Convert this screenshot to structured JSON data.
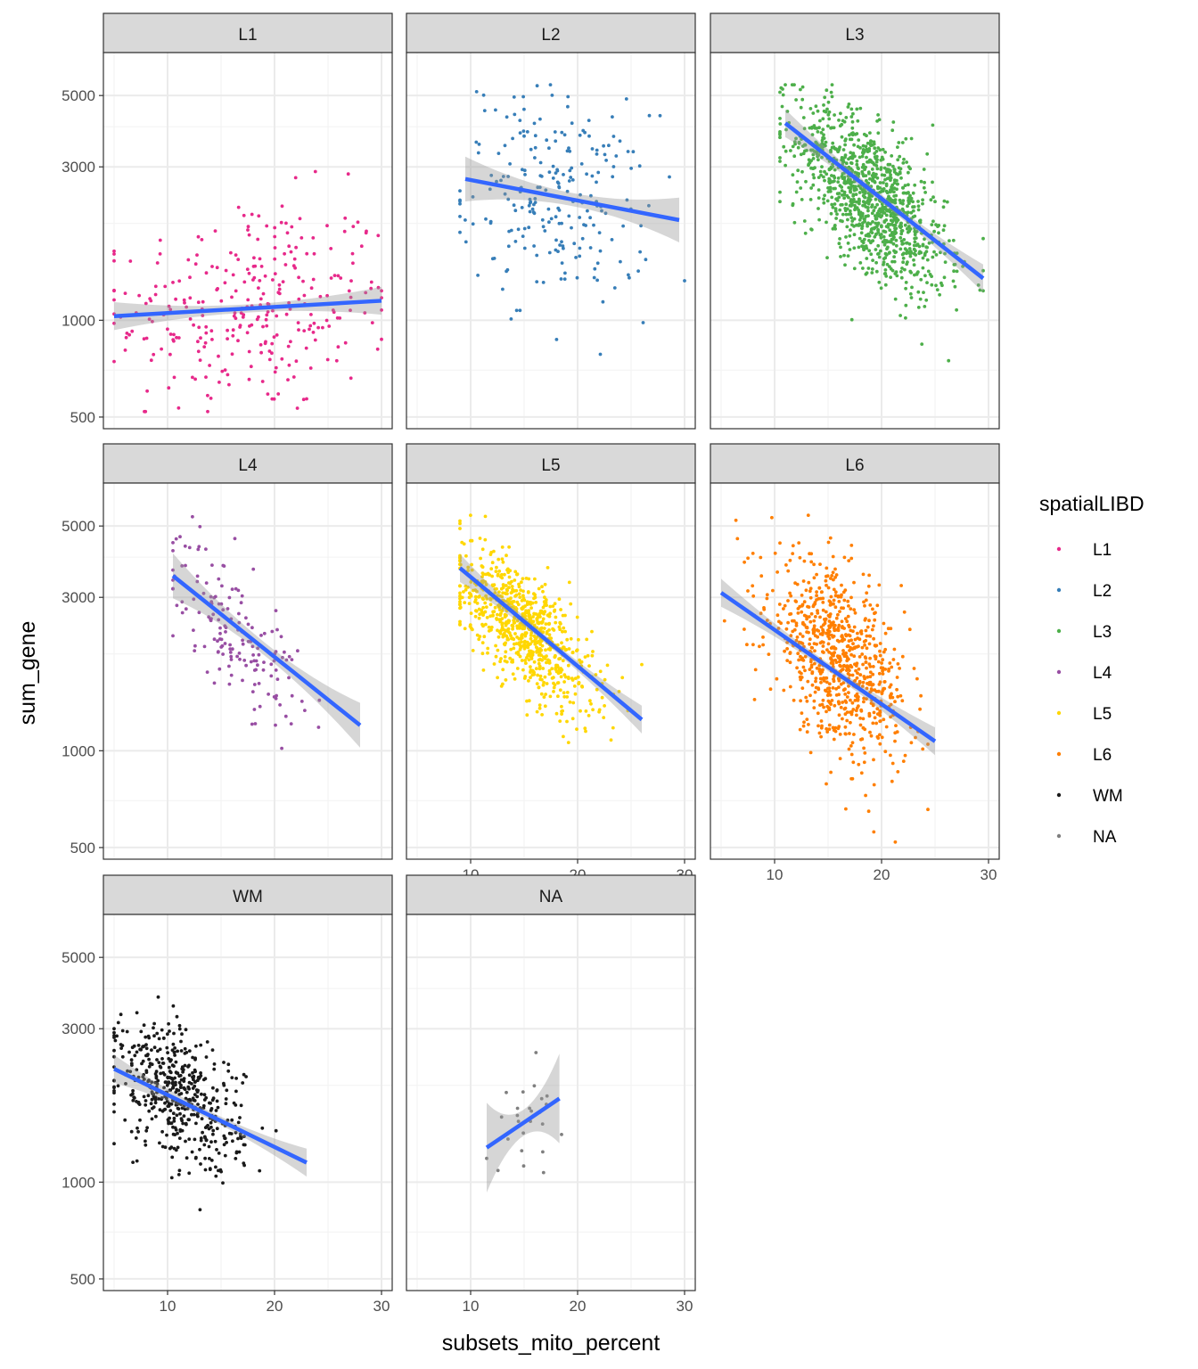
{
  "chart_data": {
    "type": "scatter",
    "facet_by": "spatialLIBD",
    "xlabel": "subsets_mito_percent",
    "ylabel": "sum_gene",
    "xlim": [
      4,
      31
    ],
    "ylim": [
      460,
      6800
    ],
    "y_scale": "log10",
    "x_ticks": [
      10,
      20,
      30
    ],
    "y_ticks": [
      500,
      1000,
      3000,
      5000
    ],
    "grid": true,
    "smooth_line_color": "#3366FF",
    "legend": {
      "title": "spatialLIBD",
      "position": "right",
      "entries": [
        {
          "label": "L1",
          "color": "#E7298A"
        },
        {
          "label": "L2",
          "color": "#377EB8"
        },
        {
          "label": "L3",
          "color": "#4DAF4A"
        },
        {
          "label": "L4",
          "color": "#984EA3"
        },
        {
          "label": "L5",
          "color": "#FFD700"
        },
        {
          "label": "L6",
          "color": "#FF7F00"
        },
        {
          "label": "WM",
          "color": "#1A1A1A"
        },
        {
          "label": "NA",
          "color": "#7F7F7F"
        }
      ]
    },
    "panels": [
      {
        "label": "L1",
        "color": "#E7298A",
        "n": 300,
        "x_range": [
          5,
          30
        ],
        "x_mean": 18,
        "x_sd": 6.5,
        "fit": {
          "x": [
            5,
            30
          ],
          "y": [
            1030,
            1150
          ]
        },
        "y_center_log": 3.04,
        "y_sd_log": 0.17,
        "slope": 0.0021
      },
      {
        "label": "L2",
        "color": "#377EB8",
        "n": 230,
        "x_range": [
          9,
          30
        ],
        "x_mean": 18,
        "x_sd": 4.5,
        "fit": {
          "x": [
            9.5,
            29.5
          ],
          "y": [
            2750,
            2050
          ]
        },
        "y_center_log": 3.38,
        "y_sd_log": 0.16,
        "slope": -0.0063
      },
      {
        "label": "L3",
        "color": "#4DAF4A",
        "n": 1100,
        "x_range": [
          10.5,
          29.5
        ],
        "x_mean": 19,
        "x_sd": 3.5,
        "fit": {
          "x": [
            11,
            29.5
          ],
          "y": [
            4100,
            1350
          ]
        },
        "y_center_log": 3.38,
        "y_sd_log": 0.11,
        "slope": -0.026
      },
      {
        "label": "L4",
        "color": "#984EA3",
        "n": 160,
        "x_range": [
          10.5,
          28.5
        ],
        "x_mean": 16,
        "x_sd": 3.2,
        "fit": {
          "x": [
            10.5,
            28
          ],
          "y": [
            3500,
            1200
          ]
        },
        "y_center_log": 3.38,
        "y_sd_log": 0.1,
        "slope": -0.027
      },
      {
        "label": "L5",
        "color": "#FFD700",
        "n": 800,
        "x_range": [
          9,
          26
        ],
        "x_mean": 15,
        "x_sd": 3.2,
        "fit": {
          "x": [
            9,
            26
          ],
          "y": [
            3700,
            1250
          ]
        },
        "y_center_log": 3.38,
        "y_sd_log": 0.09,
        "slope": -0.028
      },
      {
        "label": "L6",
        "color": "#FF7F00",
        "n": 800,
        "x_range": [
          5,
          26
        ],
        "x_mean": 16,
        "x_sd": 3.2,
        "fit": {
          "x": [
            5,
            25
          ],
          "y": [
            3100,
            1070
          ]
        },
        "y_center_log": 3.28,
        "y_sd_log": 0.13,
        "slope": -0.023
      },
      {
        "label": "WM",
        "color": "#1A1A1A",
        "n": 500,
        "x_range": [
          5,
          23
        ],
        "x_mean": 11,
        "x_sd": 3,
        "fit": {
          "x": [
            5,
            23
          ],
          "y": [
            2250,
            1150
          ]
        },
        "y_center_log": 3.27,
        "y_sd_log": 0.1,
        "slope": -0.016
      },
      {
        "label": "NA",
        "color": "#7F7F7F",
        "n": 26,
        "x_range": [
          11.5,
          18.5
        ],
        "x_mean": 15.5,
        "x_sd": 1.8,
        "fit": {
          "x": [
            11.5,
            18.3
          ],
          "y": [
            1280,
            1820
          ]
        },
        "y_center_log": 3.2,
        "y_sd_log": 0.08,
        "slope": 0.022
      }
    ]
  }
}
